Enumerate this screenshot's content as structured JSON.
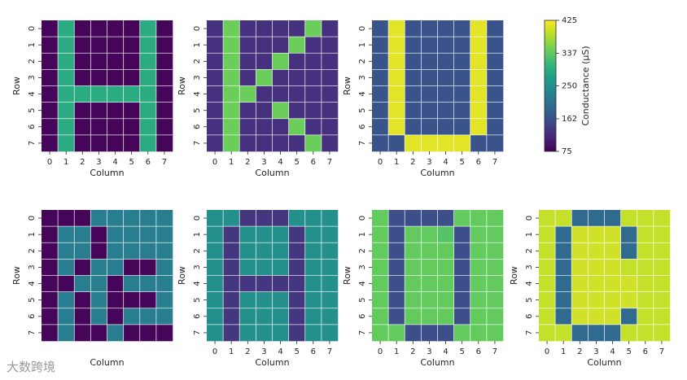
{
  "figure": {
    "watermark": "大数跨境",
    "colorbar": {
      "label": "Conductance (μS)",
      "min": 75,
      "max": 425,
      "ticks": [
        "425",
        "337",
        "250",
        "162",
        "75"
      ],
      "tick_values": [
        425,
        337,
        250,
        162,
        75
      ],
      "colormap": [
        "#440154",
        "#482878",
        "#3e4989",
        "#31688e",
        "#26828e",
        "#1f9e89",
        "#35b779",
        "#6ece58",
        "#b5de2b",
        "#fde725"
      ]
    }
  },
  "chart_data": [
    {
      "type": "heatmap",
      "panel": "top-1",
      "xlabel": "Column",
      "ylabel": "Row",
      "xticks": [
        "0",
        "1",
        "2",
        "3",
        "4",
        "5",
        "6",
        "7"
      ],
      "yticks": [
        "0",
        "1",
        "2",
        "3",
        "4",
        "5",
        "6",
        "7"
      ],
      "values": [
        [
          80,
          290,
          80,
          80,
          80,
          80,
          290,
          80
        ],
        [
          80,
          290,
          80,
          80,
          80,
          80,
          290,
          80
        ],
        [
          80,
          290,
          80,
          80,
          80,
          80,
          290,
          80
        ],
        [
          80,
          290,
          80,
          80,
          80,
          80,
          290,
          80
        ],
        [
          80,
          290,
          290,
          290,
          290,
          290,
          290,
          80
        ],
        [
          80,
          290,
          80,
          80,
          80,
          80,
          290,
          80
        ],
        [
          80,
          290,
          80,
          80,
          80,
          80,
          290,
          80
        ],
        [
          80,
          290,
          80,
          80,
          80,
          80,
          290,
          80
        ]
      ]
    },
    {
      "type": "heatmap",
      "panel": "top-2",
      "xlabel": "Column",
      "ylabel": "Row",
      "xticks": [
        "0",
        "1",
        "2",
        "3",
        "4",
        "5",
        "6",
        "7"
      ],
      "yticks": [
        "0",
        "1",
        "2",
        "3",
        "4",
        "5",
        "6",
        "7"
      ],
      "values": [
        [
          125,
          345,
          125,
          125,
          125,
          125,
          345,
          125
        ],
        [
          125,
          345,
          125,
          125,
          125,
          345,
          125,
          125
        ],
        [
          125,
          345,
          125,
          125,
          345,
          125,
          125,
          125
        ],
        [
          125,
          345,
          125,
          345,
          125,
          125,
          125,
          125
        ],
        [
          125,
          345,
          345,
          125,
          125,
          125,
          125,
          125
        ],
        [
          125,
          345,
          125,
          125,
          345,
          125,
          125,
          125
        ],
        [
          125,
          345,
          125,
          125,
          125,
          345,
          125,
          125
        ],
        [
          125,
          345,
          125,
          125,
          125,
          125,
          345,
          125
        ]
      ]
    },
    {
      "type": "heatmap",
      "panel": "top-3",
      "xlabel": "Column",
      "ylabel": "Row",
      "xticks": [
        "0",
        "1",
        "2",
        "3",
        "4",
        "5",
        "6",
        "7"
      ],
      "yticks": [
        "0",
        "1",
        "2",
        "3",
        "4",
        "5",
        "6",
        "7"
      ],
      "values": [
        [
          165,
          410,
          165,
          165,
          165,
          165,
          410,
          165
        ],
        [
          165,
          410,
          165,
          165,
          165,
          165,
          410,
          165
        ],
        [
          165,
          410,
          165,
          165,
          165,
          165,
          410,
          165
        ],
        [
          165,
          410,
          165,
          165,
          165,
          165,
          410,
          165
        ],
        [
          165,
          410,
          165,
          165,
          165,
          165,
          410,
          165
        ],
        [
          165,
          410,
          165,
          165,
          165,
          165,
          410,
          165
        ],
        [
          165,
          410,
          165,
          165,
          165,
          165,
          410,
          165
        ],
        [
          165,
          165,
          410,
          410,
          410,
          410,
          165,
          165
        ]
      ]
    },
    {
      "type": "heatmap",
      "panel": "bottom-1",
      "xlabel": "",
      "ylabel": "Row",
      "xticks": [],
      "yticks": [
        "0",
        "1",
        "2",
        "3",
        "4",
        "5",
        "6",
        "7"
      ],
      "values": [
        [
          80,
          80,
          80,
          225,
          225,
          225,
          225,
          225
        ],
        [
          80,
          225,
          225,
          80,
          225,
          225,
          225,
          225
        ],
        [
          80,
          225,
          225,
          80,
          225,
          225,
          225,
          225
        ],
        [
          80,
          225,
          80,
          225,
          225,
          80,
          80,
          225
        ],
        [
          80,
          80,
          225,
          225,
          80,
          225,
          225,
          225
        ],
        [
          80,
          225,
          80,
          225,
          80,
          80,
          80,
          225
        ],
        [
          80,
          225,
          80,
          225,
          80,
          225,
          225,
          225
        ],
        [
          80,
          225,
          80,
          80,
          225,
          80,
          80,
          80
        ]
      ]
    },
    {
      "type": "heatmap",
      "panel": "bottom-2",
      "xlabel": "",
      "ylabel": "Row",
      "xticks": [
        "0",
        "1",
        "2",
        "3",
        "4",
        "5",
        "6",
        "7"
      ],
      "yticks": [
        "0",
        "1",
        "2",
        "3",
        "4",
        "5",
        "6",
        "7"
      ],
      "values": [
        [
          250,
          250,
          130,
          130,
          130,
          250,
          250,
          250
        ],
        [
          250,
          130,
          250,
          250,
          250,
          130,
          250,
          250
        ],
        [
          250,
          130,
          250,
          250,
          250,
          130,
          250,
          250
        ],
        [
          250,
          130,
          250,
          250,
          250,
          130,
          250,
          250
        ],
        [
          250,
          130,
          130,
          130,
          130,
          130,
          250,
          250
        ],
        [
          250,
          130,
          250,
          250,
          250,
          130,
          250,
          250
        ],
        [
          250,
          130,
          250,
          250,
          250,
          130,
          250,
          250
        ],
        [
          250,
          130,
          250,
          250,
          250,
          130,
          250,
          250
        ]
      ]
    },
    {
      "type": "heatmap",
      "panel": "bottom-3",
      "xlabel": "",
      "ylabel": "Row",
      "xticks": [
        "0",
        "1",
        "2",
        "3",
        "4",
        "5",
        "6",
        "7"
      ],
      "yticks": [
        "0",
        "1",
        "2",
        "3",
        "4",
        "5",
        "6",
        "7"
      ],
      "values": [
        [
          340,
          160,
          160,
          160,
          160,
          340,
          340,
          340
        ],
        [
          340,
          160,
          340,
          340,
          330,
          160,
          340,
          340
        ],
        [
          340,
          160,
          340,
          340,
          340,
          160,
          340,
          340
        ],
        [
          340,
          160,
          340,
          340,
          340,
          160,
          340,
          340
        ],
        [
          340,
          160,
          340,
          340,
          340,
          160,
          340,
          340
        ],
        [
          340,
          160,
          340,
          340,
          340,
          160,
          340,
          340
        ],
        [
          340,
          160,
          340,
          340,
          340,
          160,
          340,
          340
        ],
        [
          340,
          340,
          160,
          160,
          160,
          340,
          340,
          340
        ]
      ]
    },
    {
      "type": "heatmap",
      "panel": "bottom-4",
      "xlabel": "Column",
      "ylabel": "Row",
      "xticks": [
        "0",
        "1",
        "2",
        "3",
        "4",
        "5",
        "6",
        "7"
      ],
      "yticks": [
        "0",
        "1",
        "2",
        "3",
        "4",
        "5",
        "6",
        "7"
      ],
      "values": [
        [
          395,
          395,
          195,
          195,
          195,
          395,
          395,
          395
        ],
        [
          395,
          195,
          400,
          400,
          400,
          195,
          395,
          395
        ],
        [
          395,
          195,
          400,
          400,
          400,
          195,
          395,
          395
        ],
        [
          395,
          195,
          400,
          400,
          400,
          395,
          395,
          395
        ],
        [
          395,
          195,
          400,
          400,
          400,
          400,
          395,
          395
        ],
        [
          395,
          195,
          400,
          400,
          400,
          400,
          395,
          395
        ],
        [
          395,
          195,
          400,
          400,
          400,
          195,
          395,
          395
        ],
        [
          395,
          395,
          195,
          195,
          195,
          395,
          395,
          395
        ]
      ]
    }
  ]
}
